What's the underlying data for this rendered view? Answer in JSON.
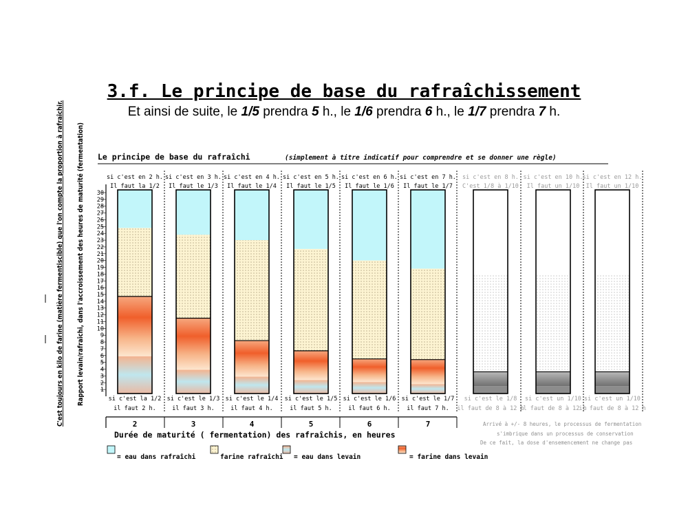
{
  "slide": {
    "title": "3.f. Le principe de base du rafraîchissement",
    "subtitle": {
      "parts": [
        {
          "t": "Et ainsi de suite, le ",
          "b": false
        },
        {
          "t": "1/5",
          "b": true
        },
        {
          "t": " prendra ",
          "b": false
        },
        {
          "t": "5",
          "b": true
        },
        {
          "t": " h., le ",
          "b": false
        },
        {
          "t": "1/6",
          "b": true
        },
        {
          "t": " prendra ",
          "b": false
        },
        {
          "t": "6",
          "b": true
        },
        {
          "t": " h., le ",
          "b": false
        },
        {
          "t": "1/7",
          "b": true
        },
        {
          "t": " prendra ",
          "b": false
        },
        {
          "t": "7",
          "b": true
        },
        {
          "t": " h.",
          "b": false
        }
      ]
    }
  },
  "chart_data": {
    "type": "bar",
    "title": "Le principe de base du rafraîchi",
    "title_note": "(simplement à titre indicatif pour comprendre et se donner une règle)",
    "ylabel_outer": "C'est toujours en kilo de farine (matière fermentiscible) que l'on compte la proportion à rafraîchir.",
    "ylabel_inner": "Rapport levain/rafraîchi, dans l'accroissement des heures de maturité (fermentation)",
    "xlabel": "Durée de maturité ( fermentation) des rafraîchis, en heures",
    "ylim": [
      0,
      30
    ],
    "yticks": [
      1,
      2,
      3,
      4,
      5,
      6,
      7,
      8,
      9,
      10,
      11,
      12,
      13,
      14,
      15,
      16,
      17,
      18,
      19,
      20,
      21,
      22,
      23,
      24,
      25,
      26,
      27,
      28,
      29,
      30
    ],
    "categories": [
      "2",
      "3",
      "4",
      "5",
      "6",
      "7",
      "",
      "",
      ""
    ],
    "top_labels": [
      "si c'est en 2 h.",
      "si c'est en 3 h.",
      "si c'est en 4 h.",
      "si c'est en 5 h.",
      "si c'est en 6 h.",
      "si c'est en 7 h.",
      "si c'est en 8 h.",
      "si c'est en 10 h.",
      "si c'est en 12 h."
    ],
    "top_labels_2": [
      "Il faut la 1/2",
      "Il faut le 1/3",
      "Il faut le 1/4",
      "Il faut le 1/5",
      "Il faut le 1/6",
      "Il faut le 1/7",
      "C'est 1/8 à 1/10",
      "Il faut un 1/10",
      "Il faut un 1/10"
    ],
    "bottom_labels": [
      "si c'est la 1/2",
      "si c'est le 1/3",
      "si c'est le 1/4",
      "si c'est le 1/5",
      "si c'est le 1/6",
      "si c'est le 1/7",
      "si c'est le 1/8",
      "si c'est un 1/10",
      "si c'est un 1/10"
    ],
    "bottom_labels_2": [
      "il faut 2 h.",
      "il faut 3 h.",
      "il faut 4 h.",
      "il faut 5 h.",
      "il faut 6 h.",
      "il faut 7 h.",
      "il faut de 8 à 12 h",
      "il faut de 8 à 12 h",
      "il faut de 8 à 12 h"
    ],
    "series": [
      {
        "name": "eau dans levain",
        "values": [
          5.5,
          3.5,
          2.5,
          2,
          1.7,
          1.4,
          1.1,
          1.1,
          1.1
        ]
      },
      {
        "name": "farine dans levain",
        "values": [
          8.8,
          7.6,
          5.3,
          4.3,
          3.4,
          3.6,
          2.1,
          2.1,
          2.1
        ]
      },
      {
        "name": "farine rafraîchi",
        "values": [
          10.1,
          12.3,
          14.8,
          15,
          14.5,
          13.4,
          14.3,
          14.3,
          14.3
        ]
      },
      {
        "name": "eau dans rafraîchi",
        "values": [
          5.6,
          6.6,
          7.4,
          8.7,
          10.4,
          11.6,
          12.5,
          12.5,
          12.5
        ]
      }
    ],
    "faded_columns": [
      6,
      7,
      8
    ],
    "legend": [
      "= eau dans rafraîchi",
      "farine rafraîchi",
      "= eau dans levain",
      "= farine dans levain"
    ],
    "notes": [
      "Arrivé à +/- 8 heures, le processus de fermentation",
      "s'imbrique dans un processus de conservation",
      "De ce fait, la dose d'ensemencement ne change pas"
    ],
    "colors": {
      "eau_rafraichi": "#c2f6fa",
      "farine_rafraichi": "#fdf4d2",
      "eau_levain": "#bfe3ea",
      "farine_levain": "#f47a45"
    }
  }
}
